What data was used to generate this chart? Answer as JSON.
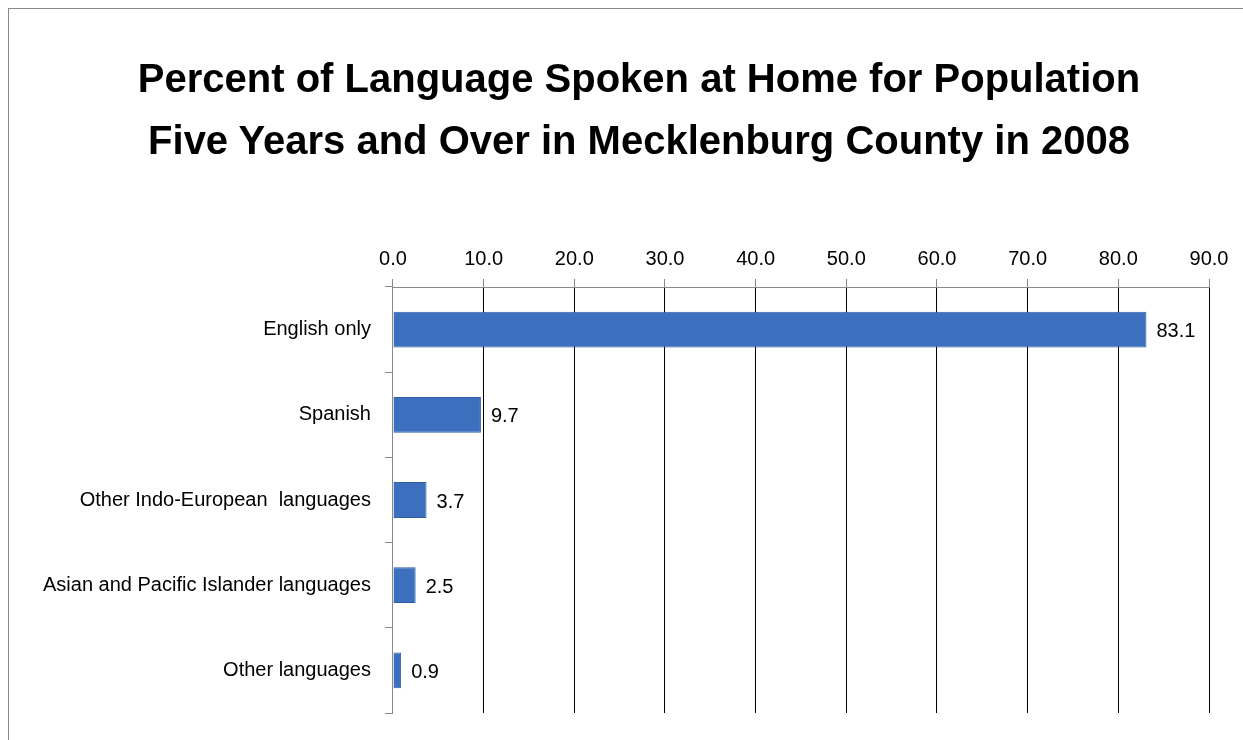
{
  "chart_data": {
    "type": "bar",
    "orientation": "horizontal",
    "title": "Percent of Language Spoken at Home for Population Five Years and Over in Mecklenburg County in 2008",
    "categories": [
      "English only",
      "Spanish",
      "Other Indo-European  languages",
      "Asian and Pacific Islander languages",
      "Other languages"
    ],
    "values": [
      83.1,
      9.7,
      3.7,
      2.5,
      0.9
    ],
    "color": "#3d6fbf",
    "xlim": [
      0,
      90
    ],
    "xticks": [
      {
        "value": 0,
        "label": "0.0"
      },
      {
        "value": 10,
        "label": "10.0"
      },
      {
        "value": 20,
        "label": "20.0"
      },
      {
        "value": 30,
        "label": "30.0"
      },
      {
        "value": 40,
        "label": "40.0"
      },
      {
        "value": 50,
        "label": "50.0"
      },
      {
        "value": 60,
        "label": "60.0"
      },
      {
        "value": 70,
        "label": "70.0"
      },
      {
        "value": 80,
        "label": "80.0"
      },
      {
        "value": 90,
        "label": "90.0"
      }
    ],
    "grid": "x",
    "data_labels": true,
    "legend": false
  }
}
